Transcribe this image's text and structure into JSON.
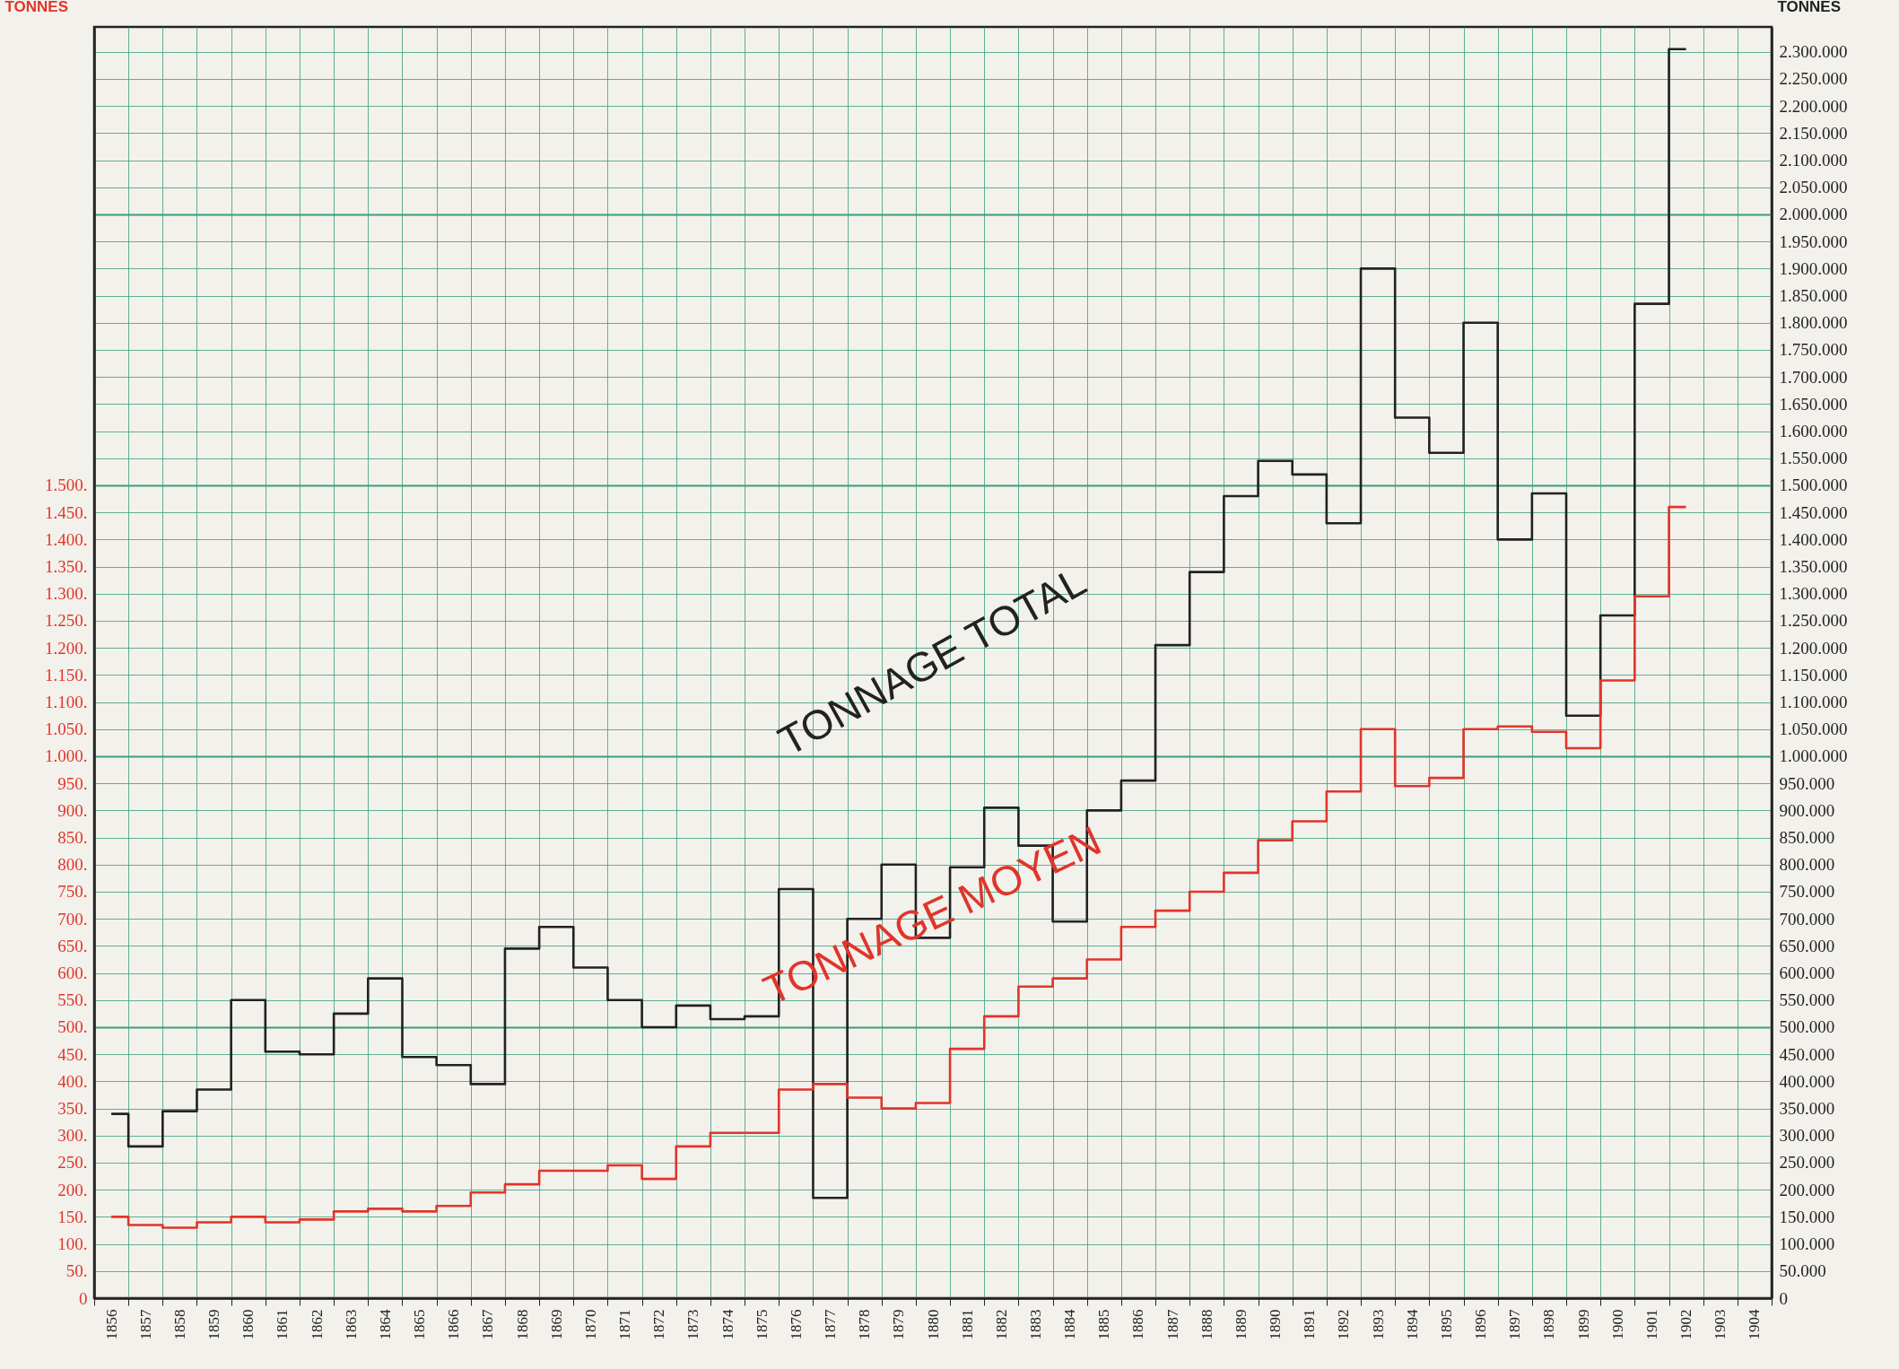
{
  "chart_data": {
    "type": "step",
    "categories": [
      "1856",
      "1857",
      "1858",
      "1859",
      "1860",
      "1861",
      "1862",
      "1863",
      "1864",
      "1865",
      "1866",
      "1867",
      "1868",
      "1869",
      "1870",
      "1871",
      "1872",
      "1873",
      "1874",
      "1875",
      "1876",
      "1877",
      "1878",
      "1879",
      "1880",
      "1881",
      "1882",
      "1883",
      "1884",
      "1885",
      "1886",
      "1887",
      "1888",
      "1889",
      "1890",
      "1891",
      "1892",
      "1893",
      "1894",
      "1895",
      "1896",
      "1897",
      "1898",
      "1899",
      "1900",
      "1901",
      "1902",
      "1903",
      "1904"
    ],
    "series": [
      {
        "name": "TONNAGE TOTAL",
        "color": "#222222",
        "axis": "y2",
        "values": [
          340000,
          280000,
          345000,
          385000,
          550000,
          455000,
          450000,
          525000,
          590000,
          445000,
          430000,
          395000,
          645000,
          685000,
          610000,
          550000,
          500000,
          540000,
          515000,
          520000,
          755000,
          185000,
          700000,
          800000,
          665000,
          795000,
          905000,
          835000,
          695000,
          900000,
          955000,
          1205000,
          1340000,
          1480000,
          1545000,
          1520000,
          1430000,
          1900000,
          1625000,
          1560000,
          1800000,
          1400000,
          1485000,
          1075000,
          1260000,
          1835000,
          2305000,
          null,
          null
        ]
      },
      {
        "name": "TONNAGE MOYEN",
        "color": "#e0352b",
        "values": [
          150,
          135,
          130,
          140,
          150,
          140,
          145,
          160,
          165,
          160,
          170,
          195,
          210,
          235,
          235,
          245,
          220,
          280,
          305,
          305,
          385,
          395,
          370,
          350,
          360,
          460,
          520,
          575,
          590,
          625,
          685,
          715,
          750,
          785,
          845,
          880,
          935,
          1050,
          945,
          960,
          1050,
          1055,
          1045,
          1015,
          1140,
          1295,
          1460,
          null,
          null
        ]
      }
    ],
    "ylabel": "TONNES",
    "y2label": "TONNES",
    "ylim": [
      0,
      2346
    ],
    "yticks": [
      {
        "value": 0,
        "label": "0"
      },
      {
        "value": 50,
        "label": "50."
      },
      {
        "value": 100,
        "label": "100."
      },
      {
        "value": 150,
        "label": "150."
      },
      {
        "value": 200,
        "label": "200."
      },
      {
        "value": 250,
        "label": "250."
      },
      {
        "value": 300,
        "label": "300."
      },
      {
        "value": 350,
        "label": "350."
      },
      {
        "value": 400,
        "label": "400."
      },
      {
        "value": 450,
        "label": "450."
      },
      {
        "value": 500,
        "label": "500."
      },
      {
        "value": 550,
        "label": "550."
      },
      {
        "value": 600,
        "label": "600."
      },
      {
        "value": 650,
        "label": "650."
      },
      {
        "value": 700,
        "label": "700."
      },
      {
        "value": 750,
        "label": "750."
      },
      {
        "value": 800,
        "label": "800."
      },
      {
        "value": 850,
        "label": "850."
      },
      {
        "value": 900,
        "label": "900."
      },
      {
        "value": 950,
        "label": "950."
      },
      {
        "value": 1000,
        "label": "1.000."
      },
      {
        "value": 1050,
        "label": "1.050."
      },
      {
        "value": 1100,
        "label": "1.100."
      },
      {
        "value": 1150,
        "label": "1.150."
      },
      {
        "value": 1200,
        "label": "1.200."
      },
      {
        "value": 1250,
        "label": "1.250."
      },
      {
        "value": 1300,
        "label": "1.300."
      },
      {
        "value": 1350,
        "label": "1.350."
      },
      {
        "value": 1400,
        "label": "1.400."
      },
      {
        "value": 1450,
        "label": "1.450."
      },
      {
        "value": 1500,
        "label": "1.500."
      }
    ],
    "y2lim": [
      0,
      2346000
    ],
    "y2ticks": [
      0,
      {
        "value": 50000,
        "label": "50.000"
      },
      {
        "value": 100000,
        "label": "100.000"
      },
      {
        "value": 150000,
        "label": "150.000"
      },
      {
        "value": 200000,
        "label": "200.000"
      },
      {
        "value": 250000,
        "label": "250.000"
      },
      {
        "value": 300000,
        "label": "300.000"
      },
      {
        "value": 350000,
        "label": "350.000"
      },
      {
        "value": 400000,
        "label": "400.000"
      },
      {
        "value": 450000,
        "label": "450.000"
      },
      {
        "value": 500000,
        "label": "500.000"
      },
      {
        "value": 550000,
        "label": "550.000"
      },
      {
        "value": 600000,
        "label": "600.000"
      },
      {
        "value": 650000,
        "label": "650.000"
      },
      {
        "value": 700000,
        "label": "700.000"
      },
      {
        "value": 750000,
        "label": "750.000"
      },
      {
        "value": 800000,
        "label": "800.000"
      },
      {
        "value": 850000,
        "label": "850.000"
      },
      {
        "value": 900000,
        "label": "900.000"
      },
      {
        "value": 950000,
        "label": "950.000"
      },
      {
        "value": 1000000,
        "label": "1.000.000"
      },
      {
        "value": 1050000,
        "label": "1.050.000"
      },
      {
        "value": 1100000,
        "label": "1.100.000"
      },
      {
        "value": 1150000,
        "label": "1.150.000"
      },
      {
        "value": 1200000,
        "label": "1.200.000"
      },
      {
        "value": 1250000,
        "label": "1.250.000"
      },
      {
        "value": 1300000,
        "label": "1.300.000"
      },
      {
        "value": 1350000,
        "label": "1.350.000"
      },
      {
        "value": 1400000,
        "label": "1.400.000"
      },
      {
        "value": 1450000,
        "label": "1.450.000"
      },
      {
        "value": 1500000,
        "label": "1.500.000"
      },
      {
        "value": 1550000,
        "label": "1.550.000"
      },
      {
        "value": 1600000,
        "label": "1.600.000"
      },
      {
        "value": 1650000,
        "label": "1.650.000"
      },
      {
        "value": 1700000,
        "label": "1.700.000"
      },
      {
        "value": 1750000,
        "label": "1.750.000"
      },
      {
        "value": 1800000,
        "label": "1.800.000"
      },
      {
        "value": 1850000,
        "label": "1.850.000"
      },
      {
        "value": 1900000,
        "label": "1.900.000"
      },
      {
        "value": 1950000,
        "label": "1.950.000"
      },
      {
        "value": 2000000,
        "label": "2.000.000"
      },
      {
        "value": 2050000,
        "label": "2.050.000"
      },
      {
        "value": 2100000,
        "label": "2.100.000"
      },
      {
        "value": 2150000,
        "label": "2.150.000"
      },
      {
        "value": 2200000,
        "label": "2.200.000"
      },
      {
        "value": 2250000,
        "label": "2.250.000"
      },
      {
        "value": 2300000,
        "label": "2.300.000"
      }
    ],
    "grid": true
  }
}
